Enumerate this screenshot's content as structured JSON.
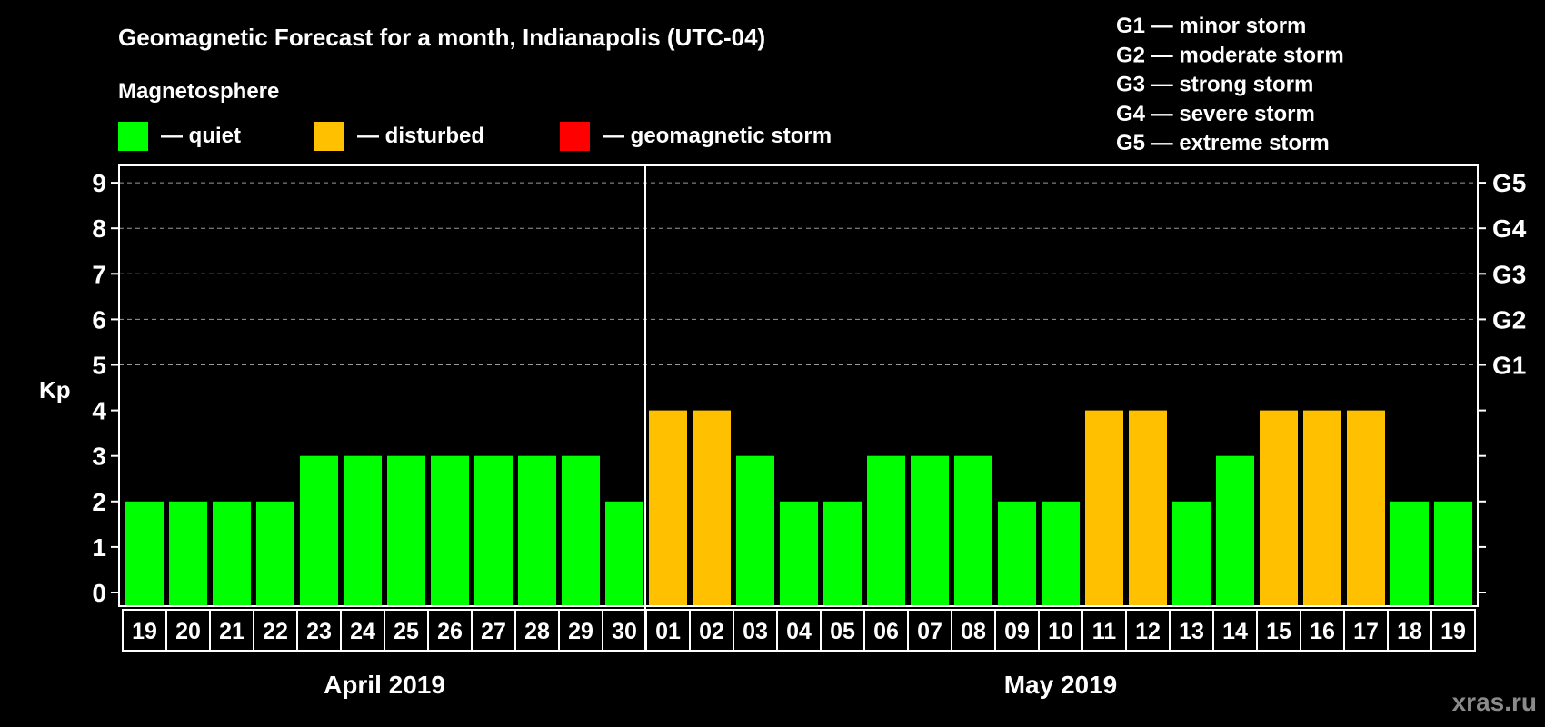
{
  "chart_data": {
    "type": "bar",
    "title": "Geomagnetic Forecast for a month, Indianapolis (UTC-04)",
    "legend_title": "Magnetosphere",
    "legend": [
      {
        "label": "— quiet",
        "color": "#00FF00"
      },
      {
        "label": "— disturbed",
        "color": "#FFC000"
      },
      {
        "label": "— geomagnetic storm",
        "color": "#FF0000"
      }
    ],
    "storm_scale": [
      "G1 — minor storm",
      "G2 — moderate storm",
      "G3 — strong storm",
      "G4 — severe storm",
      "G5 — extreme storm"
    ],
    "ylabel": "Kp",
    "ylim": [
      0,
      9
    ],
    "yticks": [
      "0",
      "1",
      "2",
      "3",
      "4",
      "5",
      "6",
      "7",
      "8",
      "9"
    ],
    "right_ticks": [
      {
        "value": 5,
        "label": "G1"
      },
      {
        "value": 6,
        "label": "G2"
      },
      {
        "value": 7,
        "label": "G3"
      },
      {
        "value": 8,
        "label": "G4"
      },
      {
        "value": 9,
        "label": "G5"
      }
    ],
    "grid": "dashed at 5-9",
    "months": [
      {
        "label": "April 2019",
        "categories": [
          "19",
          "20",
          "21",
          "22",
          "23",
          "24",
          "25",
          "26",
          "27",
          "28",
          "29",
          "30"
        ],
        "values": [
          2,
          2,
          2,
          2,
          3,
          3,
          3,
          3,
          3,
          3,
          3,
          2
        ]
      },
      {
        "label": "May 2019",
        "categories": [
          "01",
          "02",
          "03",
          "04",
          "05",
          "06",
          "07",
          "08",
          "09",
          "10",
          "11",
          "12",
          "13",
          "14",
          "15",
          "16",
          "17",
          "18",
          "19"
        ],
        "values": [
          4,
          4,
          3,
          2,
          2,
          3,
          3,
          3,
          2,
          2,
          4,
          4,
          2,
          3,
          4,
          4,
          4,
          2,
          2
        ]
      }
    ],
    "colors": {
      "quiet": "#00FF00",
      "disturbed": "#FFC000",
      "storm": "#FF0000"
    }
  },
  "watermark": "xras.ru"
}
